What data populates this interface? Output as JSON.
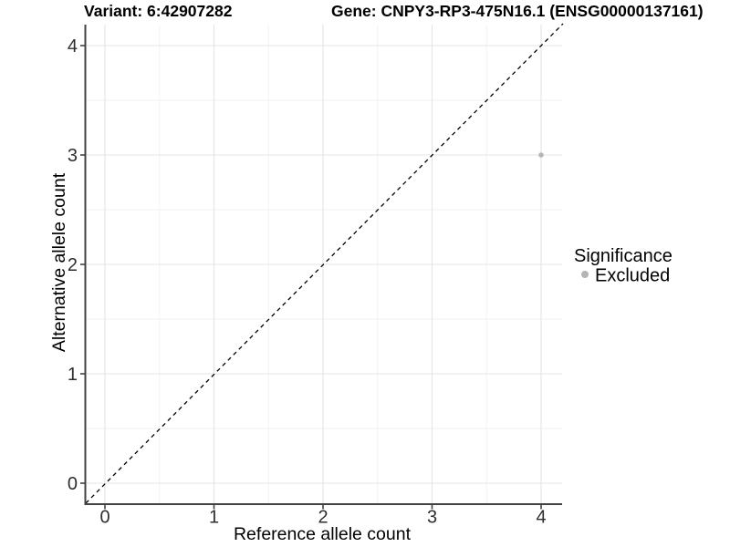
{
  "header": {
    "variant_title": "Variant: 6:42907282",
    "gene_title": "Gene: CNPY3-RP3-475N16.1 (ENSG00000137161)"
  },
  "chart_data": {
    "type": "scatter",
    "titles": {
      "left": "Variant: 6:42907282",
      "right": "Gene: CNPY3-RP3-475N16.1 (ENSG00000137161)"
    },
    "xlabel": "Reference allele count",
    "ylabel": "Alternative allele count",
    "xlim": [
      -0.2,
      4.2
    ],
    "ylim": [
      -0.2,
      4.2
    ],
    "x_ticks": [
      "0",
      "1",
      "2",
      "3",
      "4"
    ],
    "y_ticks": [
      "0",
      "1",
      "2",
      "3",
      "4"
    ],
    "grid": "major and minor gridlines, white panel background",
    "reference_line": {
      "type": "identity y=x",
      "style": "dashed",
      "color": "#000000"
    },
    "series": [
      {
        "name": "Excluded",
        "color": "#b5b5b5",
        "points": [
          {
            "x": 4,
            "y": 3
          }
        ]
      }
    ],
    "legend": {
      "title": "Significance",
      "position": "right",
      "items": [
        {
          "label": "Excluded",
          "color": "#b5b5b5",
          "marker": "circle"
        }
      ]
    }
  }
}
